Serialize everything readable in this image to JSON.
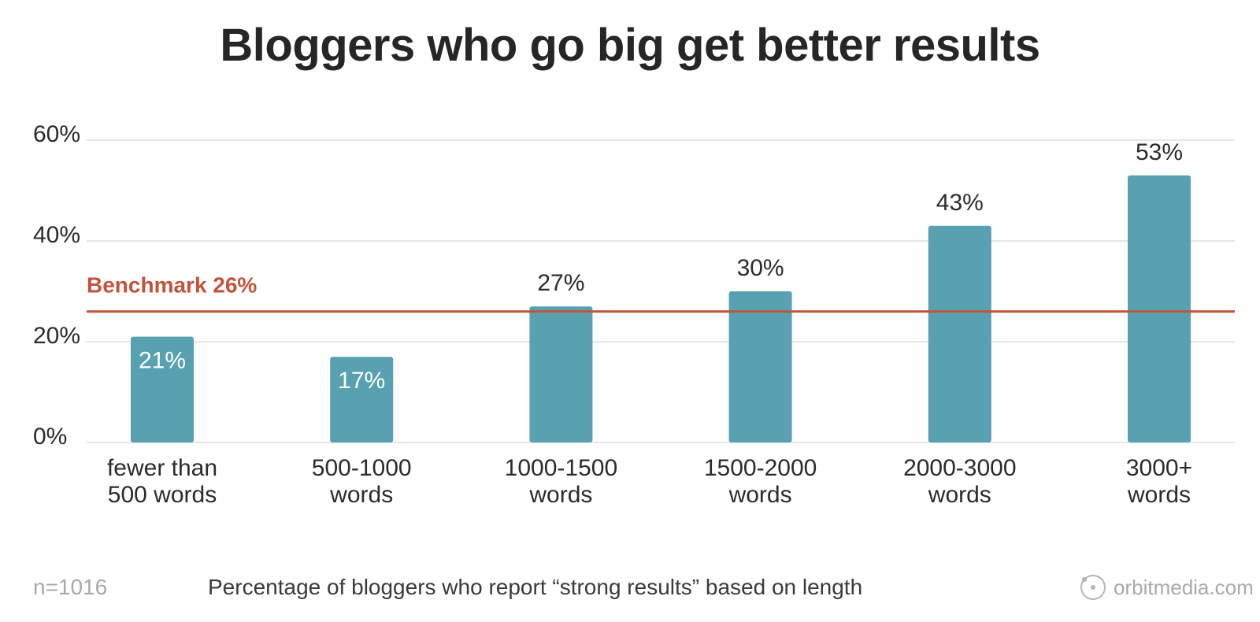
{
  "title": "Bloggers who go big get better results",
  "footer": {
    "n_label": "n=1016",
    "caption": "Percentage of bloggers who report “strong results” based on length",
    "logo_text": "orbitmedia.com"
  },
  "colors": {
    "bar": "#57a1b0",
    "benchmark": "#c0543b",
    "grid": "#e6e6e6",
    "label_dark": "#2b2b2b",
    "label_light": "#ffffff"
  },
  "chart_data": {
    "type": "bar",
    "title": "Bloggers who go big get better results",
    "categories": [
      [
        "fewer than",
        "500 words"
      ],
      [
        "500-1000",
        "words"
      ],
      [
        "1000-1500",
        "words"
      ],
      [
        "1500-2000",
        "words"
      ],
      [
        "2000-3000",
        "words"
      ],
      [
        "3000+",
        "words"
      ]
    ],
    "values": [
      21,
      17,
      27,
      30,
      43,
      53
    ],
    "value_labels": [
      "21%",
      "17%",
      "27%",
      "30%",
      "43%",
      "53%"
    ],
    "ylim": [
      0,
      60
    ],
    "yticks": [
      0,
      20,
      40,
      60
    ],
    "ytick_labels": [
      "0%",
      "20%",
      "40%",
      "60%"
    ],
    "grid": true,
    "benchmark": {
      "value": 26,
      "label": "Benchmark 26%"
    }
  }
}
